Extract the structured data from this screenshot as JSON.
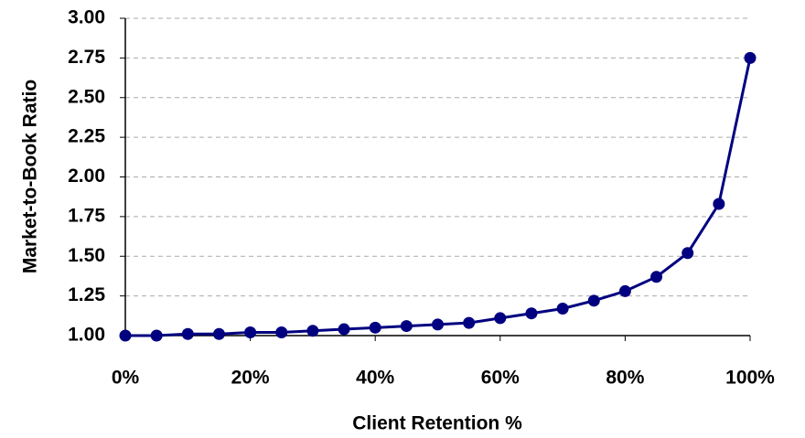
{
  "chart_data": {
    "type": "line",
    "x_label": "Client Retention %",
    "y_label": "Market-to-Book Ratio",
    "x": [
      0,
      5,
      10,
      15,
      20,
      25,
      30,
      35,
      40,
      45,
      50,
      55,
      60,
      65,
      70,
      75,
      80,
      85,
      90,
      95,
      100
    ],
    "series": [
      {
        "name": "Market-to-Book Ratio",
        "color": "#000080",
        "values": [
          1.0,
          1.0,
          1.01,
          1.01,
          1.02,
          1.02,
          1.03,
          1.04,
          1.05,
          1.06,
          1.07,
          1.08,
          1.11,
          1.14,
          1.17,
          1.22,
          1.28,
          1.37,
          1.52,
          1.83,
          2.75
        ]
      }
    ],
    "xlim": [
      0,
      100
    ],
    "xticks": [
      {
        "value": 0,
        "label": "0%"
      },
      {
        "value": 20,
        "label": "20%"
      },
      {
        "value": 40,
        "label": "40%"
      },
      {
        "value": 60,
        "label": "60%"
      },
      {
        "value": 80,
        "label": "80%"
      },
      {
        "value": 100,
        "label": "100%"
      }
    ],
    "ylim": [
      1,
      3
    ],
    "yticks": [
      {
        "value": 1,
        "label": "1.00"
      },
      {
        "value": 1.25,
        "label": "1.25"
      },
      {
        "value": 1.5,
        "label": "1.50"
      },
      {
        "value": 1.75,
        "label": "1.75"
      },
      {
        "value": 2,
        "label": "2.00"
      },
      {
        "value": 2.25,
        "label": "2.25"
      },
      {
        "value": 2.5,
        "label": "2.50"
      },
      {
        "value": 2.75,
        "label": "2.75"
      },
      {
        "value": 3,
        "label": "3.00"
      }
    ],
    "grid": true
  }
}
